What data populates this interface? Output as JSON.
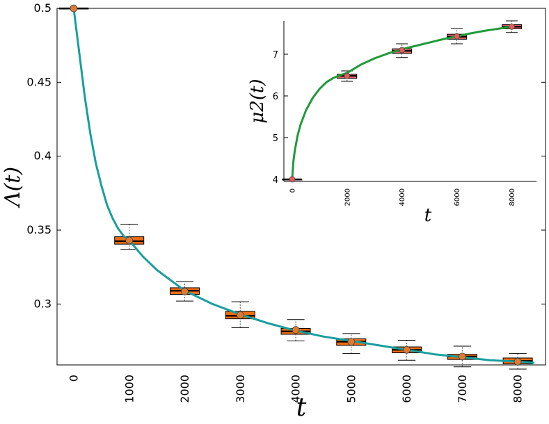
{
  "chart_data": [
    {
      "type": "box",
      "xlabel": "t",
      "ylabel": "Λ(t)",
      "xlim": [
        -300,
        8500
      ],
      "ylim": [
        0.2588,
        0.5
      ],
      "x_ticks": [
        "0",
        "1000",
        "2000",
        "3000",
        "4000",
        "5000",
        "6000",
        "7000",
        "8000"
      ],
      "y_ticks": [
        "0.3",
        "0.35",
        "0.4",
        "0.45",
        "0.5"
      ],
      "colors": {
        "curve": "#199e9e",
        "box": "#f06d12",
        "marker": "#e07a30"
      },
      "curve": {
        "x": [
          0,
          100,
          200,
          300,
          400,
          500,
          600,
          700,
          800,
          900,
          1000,
          1250,
          1500,
          1750,
          2000,
          2500,
          3000,
          3500,
          4000,
          4500,
          5000,
          5500,
          6000,
          6500,
          7000,
          7500,
          8000,
          8300
        ],
        "y": [
          0.5,
          0.47,
          0.44,
          0.415,
          0.395,
          0.38,
          0.367,
          0.358,
          0.351,
          0.346,
          0.343,
          0.332,
          0.323,
          0.316,
          0.309,
          0.3,
          0.293,
          0.287,
          0.282,
          0.278,
          0.275,
          0.272,
          0.269,
          0.266,
          0.264,
          0.262,
          0.261,
          0.2602
        ]
      },
      "boxes": [
        {
          "x": 0,
          "whisker_low": 0.5,
          "q1": 0.5,
          "median": 0.5,
          "q3": 0.5,
          "whisker_high": 0.5,
          "mean": 0.5
        },
        {
          "x": 1000,
          "whisker_low": 0.337,
          "q1": 0.3405,
          "median": 0.3425,
          "q3": 0.3455,
          "whisker_high": 0.354,
          "mean": 0.343
        },
        {
          "x": 2000,
          "whisker_low": 0.302,
          "q1": 0.3065,
          "median": 0.309,
          "q3": 0.311,
          "whisker_high": 0.315,
          "mean": 0.3085
        },
        {
          "x": 3000,
          "whisker_low": 0.284,
          "q1": 0.29,
          "median": 0.292,
          "q3": 0.295,
          "whisker_high": 0.3015,
          "mean": 0.2925
        },
        {
          "x": 4000,
          "whisker_low": 0.275,
          "q1": 0.2795,
          "median": 0.2815,
          "q3": 0.2835,
          "whisker_high": 0.2895,
          "mean": 0.2825
        },
        {
          "x": 5000,
          "whisker_low": 0.2665,
          "q1": 0.272,
          "median": 0.2745,
          "q3": 0.2765,
          "whisker_high": 0.28,
          "mean": 0.2745
        },
        {
          "x": 6000,
          "whisker_low": 0.262,
          "q1": 0.267,
          "median": 0.269,
          "q3": 0.271,
          "whisker_high": 0.2755,
          "mean": 0.269
        },
        {
          "x": 7000,
          "whisker_low": 0.2575,
          "q1": 0.2625,
          "median": 0.2645,
          "q3": 0.266,
          "whisker_high": 0.2715,
          "mean": 0.2645
        },
        {
          "x": 8000,
          "whisker_low": 0.256,
          "q1": 0.2595,
          "median": 0.2615,
          "q3": 0.2635,
          "whisker_high": 0.2665,
          "mean": 0.261
        }
      ]
    },
    {
      "type": "box",
      "xlabel": "t",
      "ylabel": "μ2(t)",
      "xlim": [
        -300,
        8900
      ],
      "ylim": [
        3.95,
        7.8
      ],
      "x_ticks": [
        "0",
        "2000",
        "4000",
        "6000",
        "8000"
      ],
      "y_ticks": [
        "4",
        "5",
        "6",
        "7"
      ],
      "colors": {
        "curve": "#1f9a3a",
        "box": "#e0676b",
        "marker": "#e85a5a"
      },
      "curve": {
        "x": [
          0,
          50,
          100,
          200,
          300,
          500,
          750,
          1000,
          1250,
          1500,
          1750,
          2000,
          2500,
          3000,
          3500,
          4000,
          4500,
          5000,
          5500,
          6000,
          6500,
          7000,
          7500,
          8000
        ],
        "y": [
          4.0,
          4.45,
          4.7,
          5.05,
          5.3,
          5.65,
          5.95,
          6.17,
          6.33,
          6.43,
          6.5,
          6.55,
          6.75,
          6.9,
          7.02,
          7.12,
          7.2,
          7.28,
          7.36,
          7.43,
          7.5,
          7.56,
          7.61,
          7.66
        ]
      },
      "boxes": [
        {
          "x": 0,
          "whisker_low": 4.0,
          "q1": 4.0,
          "median": 4.0,
          "q3": 4.0,
          "whisker_high": 4.0,
          "mean": 4.0
        },
        {
          "x": 2000,
          "whisker_low": 6.35,
          "q1": 6.42,
          "median": 6.48,
          "q3": 6.52,
          "whisker_high": 6.6,
          "mean": 6.48
        },
        {
          "x": 4000,
          "whisker_low": 6.92,
          "q1": 7.02,
          "median": 7.08,
          "q3": 7.13,
          "whisker_high": 7.25,
          "mean": 7.1
        },
        {
          "x": 6000,
          "whisker_low": 7.25,
          "q1": 7.36,
          "median": 7.42,
          "q3": 7.48,
          "whisker_high": 7.62,
          "mean": 7.43
        },
        {
          "x": 8000,
          "whisker_low": 7.52,
          "q1": 7.61,
          "median": 7.66,
          "q3": 7.71,
          "whisker_high": 7.8,
          "mean": 7.66
        }
      ]
    }
  ]
}
